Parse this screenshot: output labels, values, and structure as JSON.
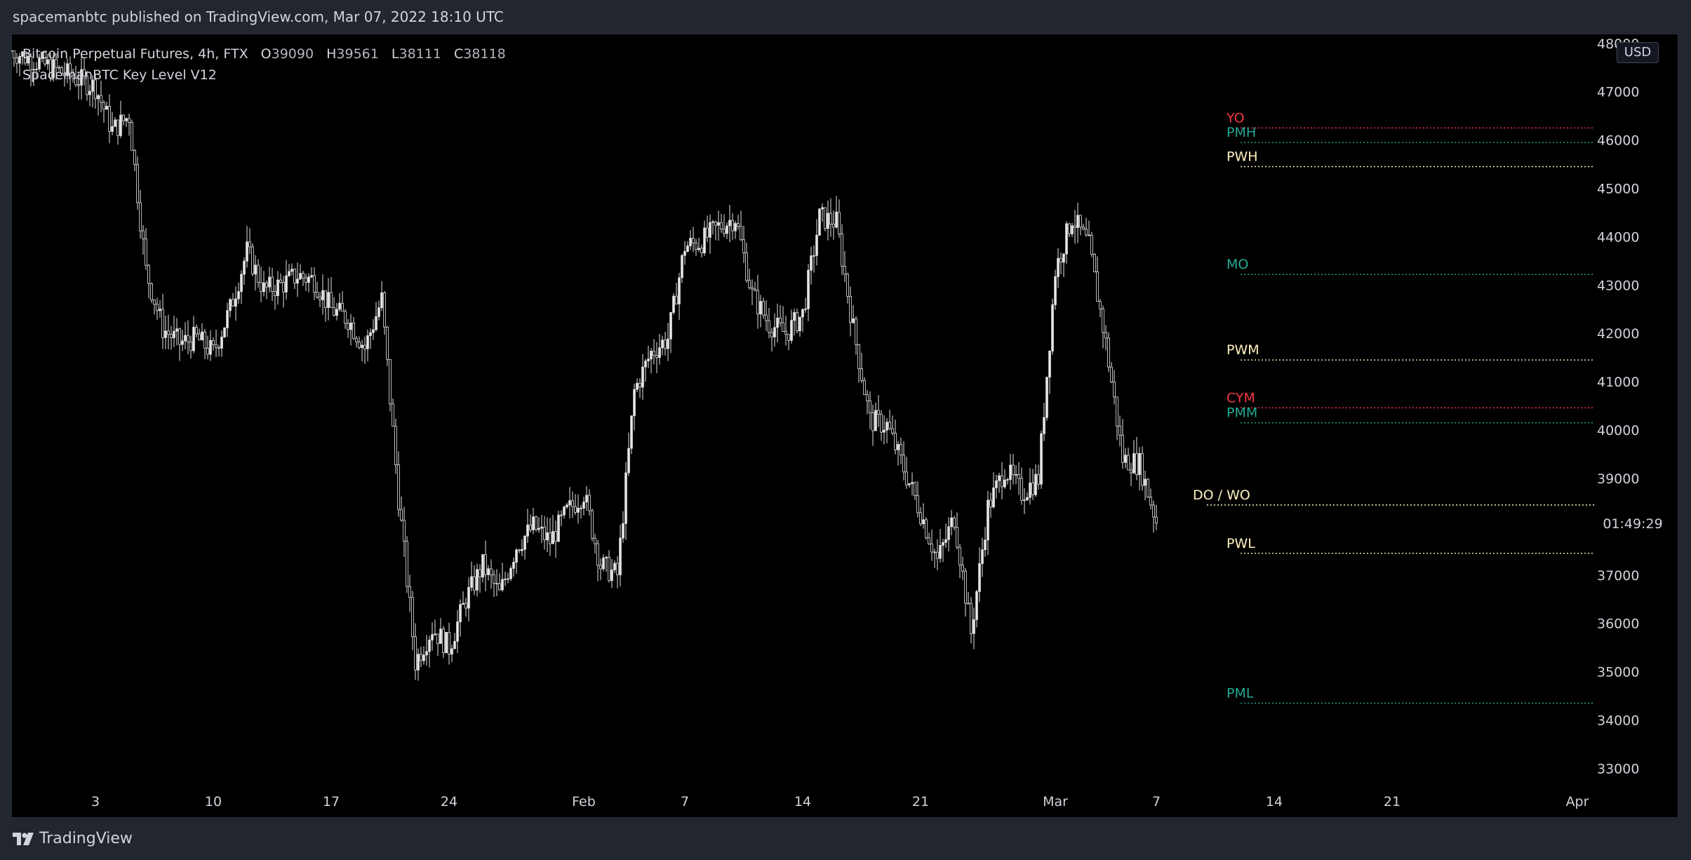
{
  "header": {
    "published_text": "spacemanbtc published on TradingView.com, Mar 07, 2022 18:10 UTC"
  },
  "legend": {
    "symbol": "Bitcoin Perpetual Futures, 4h, FTX",
    "o_label": "O",
    "o_value": "39090",
    "h_label": "H",
    "h_value": "39561",
    "l_label": "L",
    "l_value": "38111",
    "c_label": "C",
    "c_value": "38118",
    "indicator": "SpacemanBTC Key Level V12"
  },
  "currency_button": "USD",
  "countdown": "01:49:29",
  "footer": {
    "brand": "TradingView",
    "logo_icon": "tradingview-logo-icon"
  },
  "colors": {
    "background": "#000000",
    "candle": "#e6e6e6",
    "red_level": "#f23645",
    "green_level": "#22ab94",
    "yellow_level": "#fff2c0"
  },
  "chart_data": {
    "type": "candlestick",
    "timeframe": "4h",
    "ylim": [
      32600,
      48200
    ],
    "yticks": [
      33000,
      34000,
      35000,
      36000,
      37000,
      38000,
      39000,
      40000,
      41000,
      42000,
      43000,
      44000,
      45000,
      46000,
      47000,
      48000
    ],
    "ytick_labels": [
      "33000",
      "34000",
      "35000",
      "36000",
      "37000",
      "38000",
      "39000",
      "40000",
      "41000",
      "42000",
      "43000",
      "44000",
      "45000",
      "46000",
      "47000",
      "48000"
    ],
    "xaxis_start": "2021-12-29",
    "xaxis_end": "2022-04-02",
    "xticks": [
      {
        "date": "2022-01-03",
        "label": "3"
      },
      {
        "date": "2022-01-10",
        "label": "10"
      },
      {
        "date": "2022-01-17",
        "label": "17"
      },
      {
        "date": "2022-01-24",
        "label": "24"
      },
      {
        "date": "2022-02-01",
        "label": "Feb"
      },
      {
        "date": "2022-02-07",
        "label": "7"
      },
      {
        "date": "2022-02-14",
        "label": "14"
      },
      {
        "date": "2022-02-21",
        "label": "21"
      },
      {
        "date": "2022-03-01",
        "label": "Mar"
      },
      {
        "date": "2022-03-07",
        "label": "7"
      },
      {
        "date": "2022-03-14",
        "label": "14"
      },
      {
        "date": "2022-03-21",
        "label": "21"
      },
      {
        "date": "2022-04-01",
        "label": "Apr"
      }
    ],
    "price_path": [
      [
        "2022-01-03",
        47100
      ],
      [
        "2022-01-04",
        46200
      ],
      [
        "2022-01-05",
        46500
      ],
      [
        "2022-01-06",
        43300
      ],
      [
        "2022-01-07",
        42100
      ],
      [
        "2022-01-08",
        41800
      ],
      [
        "2022-01-09",
        41900
      ],
      [
        "2022-01-10",
        41600
      ],
      [
        "2022-01-11",
        42500
      ],
      [
        "2022-01-12",
        43700
      ],
      [
        "2022-01-13",
        42900
      ],
      [
        "2022-01-14",
        43000
      ],
      [
        "2022-01-15",
        43200
      ],
      [
        "2022-01-16",
        43100
      ],
      [
        "2022-01-17",
        42500
      ],
      [
        "2022-01-18",
        42300
      ],
      [
        "2022-01-19",
        41700
      ],
      [
        "2022-01-20",
        42700
      ],
      [
        "2022-01-21",
        38600
      ],
      [
        "2022-01-22",
        35200
      ],
      [
        "2022-01-23",
        35900
      ],
      [
        "2022-01-24",
        35500
      ],
      [
        "2022-01-25",
        36500
      ],
      [
        "2022-01-26",
        37200
      ],
      [
        "2022-01-27",
        36600
      ],
      [
        "2022-01-28",
        37600
      ],
      [
        "2022-01-29",
        38000
      ],
      [
        "2022-01-30",
        37700
      ],
      [
        "2022-01-31",
        38300
      ],
      [
        "2022-02-01",
        38700
      ],
      [
        "2022-02-02",
        37200
      ],
      [
        "2022-02-03",
        37000
      ],
      [
        "2022-02-04",
        40800
      ],
      [
        "2022-02-05",
        41600
      ],
      [
        "2022-02-06",
        41900
      ],
      [
        "2022-02-07",
        43800
      ],
      [
        "2022-02-08",
        43900
      ],
      [
        "2022-02-09",
        44200
      ],
      [
        "2022-02-10",
        44400
      ],
      [
        "2022-02-11",
        42800
      ],
      [
        "2022-02-12",
        42200
      ],
      [
        "2022-02-13",
        42000
      ],
      [
        "2022-02-14",
        42400
      ],
      [
        "2022-02-15",
        44400
      ],
      [
        "2022-02-16",
        44300
      ],
      [
        "2022-02-17",
        42100
      ],
      [
        "2022-02-18",
        40200
      ],
      [
        "2022-02-19",
        40100
      ],
      [
        "2022-02-20",
        39200
      ],
      [
        "2022-02-21",
        38300
      ],
      [
        "2022-02-22",
        37300
      ],
      [
        "2022-02-23",
        38200
      ],
      [
        "2022-02-24",
        35800
      ],
      [
        "2022-02-25",
        38400
      ],
      [
        "2022-02-26",
        39200
      ],
      [
        "2022-02-27",
        38700
      ],
      [
        "2022-02-28",
        39000
      ],
      [
        "2022-03-01",
        43300
      ],
      [
        "2022-03-02",
        44400
      ],
      [
        "2022-03-03",
        43800
      ],
      [
        "2022-03-04",
        41800
      ],
      [
        "2022-03-05",
        39400
      ],
      [
        "2022-03-06",
        39300
      ],
      [
        "2022-03-07",
        38118
      ]
    ],
    "price_range_low": 32950,
    "price_range_high": 47800,
    "key_levels": [
      {
        "label": "YO",
        "price": 46250,
        "color": "#f23645",
        "start_date": "2022-03-12"
      },
      {
        "label": "PMH",
        "price": 45950,
        "color": "#22ab94",
        "start_date": "2022-03-12"
      },
      {
        "label": "PWH",
        "price": 45450,
        "color": "#fff2c0",
        "start_date": "2022-03-12"
      },
      {
        "label": "MO",
        "price": 43220,
        "color": "#22ab94",
        "start_date": "2022-03-12"
      },
      {
        "label": "PWM",
        "price": 41450,
        "color": "#fff2c0",
        "start_date": "2022-03-12"
      },
      {
        "label": "CYM",
        "price": 40460,
        "color": "#f23645",
        "start_date": "2022-03-12"
      },
      {
        "label": "PMM",
        "price": 40150,
        "color": "#22ab94",
        "start_date": "2022-03-12"
      },
      {
        "label": "DO / WO",
        "price": 38450,
        "color": "#fff2c0",
        "start_date": "2022-03-10"
      },
      {
        "label": "PWL",
        "price": 37450,
        "color": "#fff2c0",
        "start_date": "2022-03-12"
      },
      {
        "label": "PML",
        "price": 34350,
        "color": "#22ab94",
        "start_date": "2022-03-12"
      }
    ]
  }
}
